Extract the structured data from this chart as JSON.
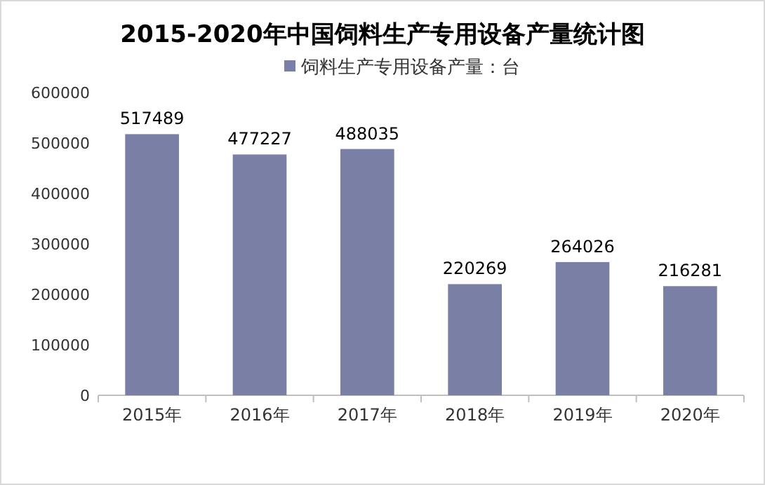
{
  "chart_data": {
    "type": "bar",
    "title": "2015-2020年中国饲料生产专用设备产量统计图",
    "categories": [
      "2015年",
      "2016年",
      "2017年",
      "2018年",
      "2019年",
      "2020年"
    ],
    "series": [
      {
        "name": "饲料生产专用设备产量：台",
        "color": "#7a7fa5",
        "values": [
          517489,
          477227,
          488035,
          220269,
          264026,
          216281
        ]
      }
    ],
    "ylim": [
      0,
      600000
    ],
    "yticks": [
      0,
      100000,
      200000,
      300000,
      400000,
      500000,
      600000
    ],
    "data_labels": true,
    "legend": "top",
    "grid": false
  }
}
